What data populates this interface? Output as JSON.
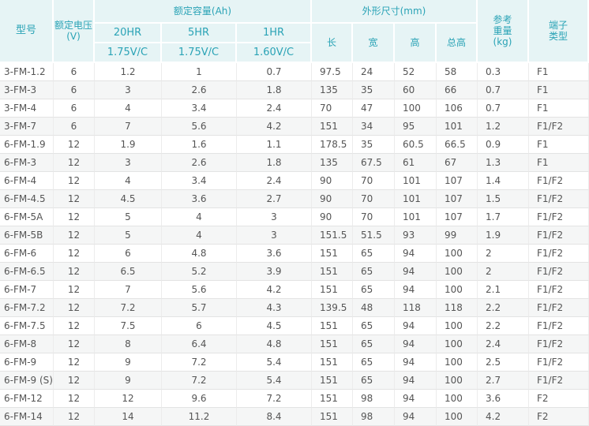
{
  "header": {
    "model": "型号",
    "voltage": [
      "额定电压",
      "(V)"
    ],
    "capacity": "额定容量(Ah)",
    "rates": [
      "20HR",
      "5HR",
      "1HR"
    ],
    "cutoffs": [
      "1.75V/C",
      "1.75V/C",
      "1.60V/C"
    ],
    "dimensions": "外形尺寸(mm)",
    "dims": [
      "长",
      "宽",
      "高",
      "总高"
    ],
    "weight": [
      "参考",
      "重量",
      "(kg)"
    ],
    "terminal": [
      "端子",
      "类型"
    ]
  },
  "table": {
    "rows": [
      [
        "3-FM-1.2",
        "6",
        "1.2",
        "1",
        "0.7",
        "97.5",
        "24",
        "52",
        "58",
        "0.3",
        "F1"
      ],
      [
        "3-FM-3",
        "6",
        "3",
        "2.6",
        "1.8",
        "135",
        "35",
        "60",
        "66",
        "0.7",
        "F1"
      ],
      [
        "3-FM-4",
        "6",
        "4",
        "3.4",
        "2.4",
        "70",
        "47",
        "100",
        "106",
        "0.7",
        "F1"
      ],
      [
        "3-FM-7",
        "6",
        "7",
        "5.6",
        "4.2",
        "151",
        "34",
        "95",
        "101",
        "1.2",
        "F1/F2"
      ],
      [
        "6-FM-1.9",
        "12",
        "1.9",
        "1.6",
        "1.1",
        "178.5",
        "35",
        "60.5",
        "66.5",
        "0.9",
        "F1"
      ],
      [
        "6-FM-3",
        "12",
        "3",
        "2.6",
        "1.8",
        "135",
        "67.5",
        "61",
        "67",
        "1.3",
        "F1"
      ],
      [
        "6-FM-4",
        "12",
        "4",
        "3.4",
        "2.4",
        "90",
        "70",
        "101",
        "107",
        "1.4",
        "F1/F2"
      ],
      [
        "6-FM-4.5",
        "12",
        "4.5",
        "3.6",
        "2.7",
        "90",
        "70",
        "101",
        "107",
        "1.5",
        "F1/F2"
      ],
      [
        "6-FM-5A",
        "12",
        "5",
        "4",
        "3",
        "90",
        "70",
        "101",
        "107",
        "1.7",
        "F1/F2"
      ],
      [
        "6-FM-5B",
        "12",
        "5",
        "4",
        "3",
        "151.5",
        "51.5",
        "93",
        "99",
        "1.9",
        "F1/F2"
      ],
      [
        "6-FM-6",
        "12",
        "6",
        "4.8",
        "3.6",
        "151",
        "65",
        "94",
        "100",
        "2",
        "F1/F2"
      ],
      [
        "6-FM-6.5",
        "12",
        "6.5",
        "5.2",
        "3.9",
        "151",
        "65",
        "94",
        "100",
        "2",
        "F1/F2"
      ],
      [
        "6-FM-7",
        "12",
        "7",
        "5.6",
        "4.2",
        "151",
        "65",
        "94",
        "100",
        "2.1",
        "F1/F2"
      ],
      [
        "6-FM-7.2",
        "12",
        "7.2",
        "5.7",
        "4.3",
        "139.5",
        "48",
        "118",
        "118",
        "2.2",
        "F1/F2"
      ],
      [
        "6-FM-7.5",
        "12",
        "7.5",
        "6",
        "4.5",
        "151",
        "65",
        "94",
        "100",
        "2.2",
        "F1/F2"
      ],
      [
        "6-FM-8",
        "12",
        "8",
        "6.4",
        "4.8",
        "151",
        "65",
        "94",
        "100",
        "2.4",
        "F1/F2"
      ],
      [
        "6-FM-9",
        "12",
        "9",
        "7.2",
        "5.4",
        "151",
        "65",
        "94",
        "100",
        "2.5",
        "F1/F2"
      ],
      [
        "6-FM-9 (S)",
        "12",
        "9",
        "7.2",
        "5.4",
        "151",
        "65",
        "94",
        "100",
        "2.7",
        "F1/F2"
      ],
      [
        "6-FM-12",
        "12",
        "12",
        "9.6",
        "7.2",
        "151",
        "98",
        "94",
        "100",
        "3.6",
        "F2"
      ],
      [
        "6-FM-14",
        "12",
        "14",
        "11.2",
        "8.4",
        "151",
        "98",
        "94",
        "100",
        "4.2",
        "F2"
      ]
    ]
  }
}
